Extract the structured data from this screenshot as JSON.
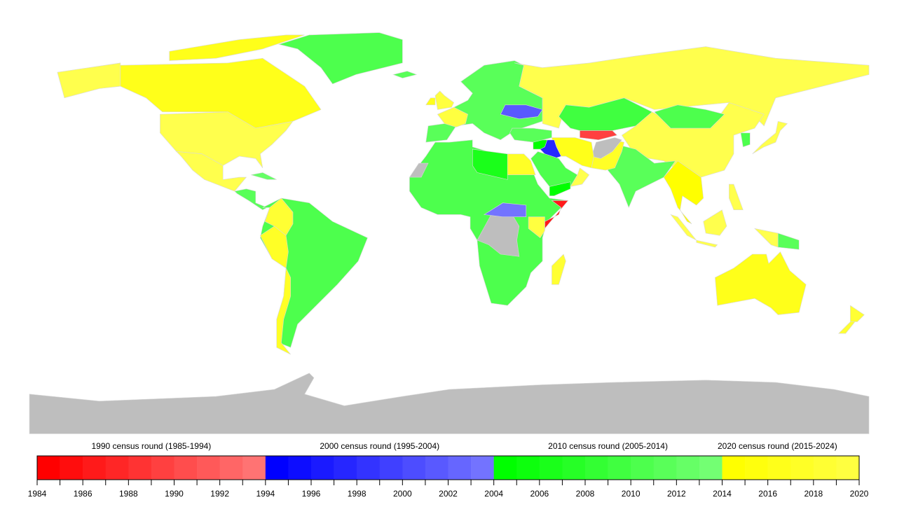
{
  "legend": {
    "groups": [
      {
        "label": "1990 census round (1985-1994)",
        "start": 1984,
        "end": 1994,
        "base": "#ff0000"
      },
      {
        "label": "2000 census round (1995-2004)",
        "start": 1994,
        "end": 2004,
        "base": "#0000ff"
      },
      {
        "label": "2010 census round (2005-2014)",
        "start": 2004,
        "end": 2014,
        "base": "#00ff00"
      },
      {
        "label": "2020 census round (2015-2024)",
        "start": 2014,
        "end": 2020,
        "base": "#ffff00"
      }
    ],
    "range": [
      1984,
      2020
    ],
    "tick_labels": [
      "1984",
      "1986",
      "1988",
      "1990",
      "1992",
      "1994",
      "1996",
      "1998",
      "2000",
      "2002",
      "2004",
      "2006",
      "2008",
      "2010",
      "2012",
      "2014",
      "2016",
      "2018",
      "2020"
    ],
    "no_data_color": "#bebebe"
  },
  "regions": [
    {
      "name": "Antarctica",
      "year": null
    },
    {
      "name": "Canada",
      "year": 2016
    },
    {
      "name": "Canadian Arctic",
      "year": 2016
    },
    {
      "name": "United States",
      "year": 2020
    },
    {
      "name": "Alaska",
      "year": 2020
    },
    {
      "name": "Mexico",
      "year": 2020
    },
    {
      "name": "Central America",
      "year": 2011
    },
    {
      "name": "Cuba",
      "year": 2012
    },
    {
      "name": "Greenland",
      "year": 2010
    },
    {
      "name": "Iceland",
      "year": 2011
    },
    {
      "name": "South America",
      "year": 2010
    },
    {
      "name": "Colombia",
      "year": 2018
    },
    {
      "name": "Peru",
      "year": 2017
    },
    {
      "name": "Chile",
      "year": 2017
    },
    {
      "name": "Africa",
      "year": 2010
    },
    {
      "name": "Egypt",
      "year": 2017
    },
    {
      "name": "Libya",
      "year": 2006
    },
    {
      "name": "Western Sahara",
      "year": null
    },
    {
      "name": "DR Congo",
      "year": null
    },
    {
      "name": "Central African Republic / South Sudan",
      "year": 2003
    },
    {
      "name": "Somalia",
      "year": 1986
    },
    {
      "name": "Kenya",
      "year": 2019
    },
    {
      "name": "Madagascar",
      "year": 2018
    },
    {
      "name": "Europe",
      "year": 2011
    },
    {
      "name": "France",
      "year": 2019
    },
    {
      "name": "United Kingdom",
      "year": 2019
    },
    {
      "name": "Ireland",
      "year": 2016
    },
    {
      "name": "Ukraine",
      "year": 2001
    },
    {
      "name": "Russia",
      "year": 2020
    },
    {
      "name": "Kazakhstan",
      "year": 2009
    },
    {
      "name": "Uzbekistan",
      "year": 1989
    },
    {
      "name": "China",
      "year": 2020
    },
    {
      "name": "Mongolia",
      "year": 2010
    },
    {
      "name": "India",
      "year": 2011
    },
    {
      "name": "Pakistan",
      "year": 2017
    },
    {
      "name": "Afghanistan",
      "year": null
    },
    {
      "name": "Iran",
      "year": 2016
    },
    {
      "name": "Iraq",
      "year": 1997
    },
    {
      "name": "Syria",
      "year": 2004
    },
    {
      "name": "Turkey",
      "year": 2011
    },
    {
      "name": "Saudi Arabia",
      "year": 2010
    },
    {
      "name": "Yemen",
      "year": 2004
    },
    {
      "name": "Oman",
      "year": 2020
    },
    {
      "name": "Indochina",
      "year": 2014
    },
    {
      "name": "Korea",
      "year": 2010
    },
    {
      "name": "Japan",
      "year": 2020
    },
    {
      "name": "Philippines",
      "year": 2020
    },
    {
      "name": "Sumatra",
      "year": 2020
    },
    {
      "name": "Borneo",
      "year": 2020
    },
    {
      "name": "Java",
      "year": 2020
    },
    {
      "name": "Western New Guinea",
      "year": 2020
    },
    {
      "name": "Papua New Guinea",
      "year": 2011
    },
    {
      "name": "Australia",
      "year": 2016
    },
    {
      "name": "New Zealand North",
      "year": 2018
    },
    {
      "name": "New Zealand South",
      "year": 2018
    }
  ]
}
